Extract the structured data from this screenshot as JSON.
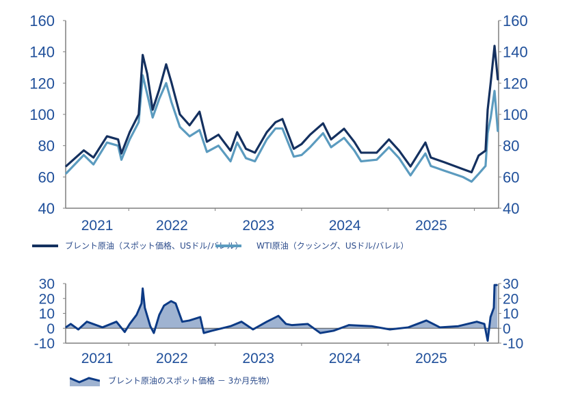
{
  "colors": {
    "brent": "#14305f",
    "wti": "#5b9bbf",
    "spread_line": "#0c3a85",
    "spread_fill": "#9fb3d1",
    "axis": "#7f7f7f",
    "tick_text": "#1f4f9a"
  },
  "chart_data": [
    {
      "type": "line",
      "y_ticks": [
        "160",
        "140",
        "120",
        "100",
        "80",
        "60",
        "40"
      ],
      "ylim": [
        40,
        160
      ],
      "x_ticks": [
        "2021",
        "2022",
        "2023",
        "2024",
        "2025"
      ],
      "grid": false,
      "legend_position": "bottom",
      "series": [
        {
          "name": "ブレント原油（スポット価格、USドル/バレル）",
          "points": [
            [
              "2021-04-10",
              66.7
            ],
            [
              "2021-06-25",
              77
            ],
            [
              "2021-08-05",
              72.4
            ],
            [
              "2021-10-01",
              86
            ],
            [
              "2021-11-17",
              84
            ],
            [
              "2021-12-01",
              75
            ],
            [
              "2022-01-05",
              88.6
            ],
            [
              "2022-02-12",
              100
            ],
            [
              "2022-03-01",
              138
            ],
            [
              "2022-03-20",
              126
            ],
            [
              "2022-04-12",
              103
            ],
            [
              "2022-05-10",
              116
            ],
            [
              "2022-06-08",
              132
            ],
            [
              "2022-06-30",
              120.6
            ],
            [
              "2022-08-05",
              100
            ],
            [
              "2022-09-15",
              93
            ],
            [
              "2022-10-27",
              101.7
            ],
            [
              "2022-11-27",
              82.5
            ],
            [
              "2023-01-15",
              87
            ],
            [
              "2023-03-07",
              76.8
            ],
            [
              "2023-04-04",
              88.6
            ],
            [
              "2023-05-11",
              78
            ],
            [
              "2023-06-18",
              75.5
            ],
            [
              "2023-08-07",
              88.6
            ],
            [
              "2023-09-13",
              95
            ],
            [
              "2023-10-12",
              97
            ],
            [
              "2023-11-29",
              78
            ],
            [
              "2024-01-01",
              81
            ],
            [
              "2024-02-06",
              87
            ],
            [
              "2024-04-01",
              94.3
            ],
            [
              "2024-05-05",
              84
            ],
            [
              "2024-06-29",
              90.8
            ],
            [
              "2024-08-11",
              82.5
            ],
            [
              "2024-09-09",
              75.5
            ],
            [
              "2024-11-14",
              75.5
            ],
            [
              "2025-01-05",
              84
            ],
            [
              "2025-02-17",
              76.8
            ],
            [
              "2025-04-06",
              66.7
            ],
            [
              "2025-06-08",
              82
            ],
            [
              "2025-07-01",
              72.4
            ],
            [
              "2025-08-27",
              69.4
            ],
            [
              "2025-11-13",
              65
            ],
            [
              "2025-12-20",
              63
            ],
            [
              "2026-01-19",
              73.7
            ],
            [
              "2026-02-17",
              76.8
            ],
            [
              "2026-02-26",
              103
            ],
            [
              "2026-03-11",
              120.6
            ],
            [
              "2026-03-27",
              143.8
            ],
            [
              "2026-04-10",
              122
            ]
          ]
        },
        {
          "name": "WTI原油（クッシング、USドル/バレル）",
          "points": [
            [
              "2021-04-10",
              62
            ],
            [
              "2021-06-25",
              74
            ],
            [
              "2021-08-05",
              68
            ],
            [
              "2021-10-01",
              82
            ],
            [
              "2021-11-17",
              80
            ],
            [
              "2021-12-01",
              71
            ],
            [
              "2022-01-05",
              84
            ],
            [
              "2022-02-12",
              95
            ],
            [
              "2022-03-01",
              125
            ],
            [
              "2022-03-20",
              113
            ],
            [
              "2022-04-12",
              98
            ],
            [
              "2022-05-10",
              110
            ],
            [
              "2022-06-08",
              120
            ],
            [
              "2022-06-30",
              108
            ],
            [
              "2022-08-05",
              92
            ],
            [
              "2022-09-15",
              86
            ],
            [
              "2022-10-27",
              90
            ],
            [
              "2022-11-27",
              76
            ],
            [
              "2023-01-15",
              80
            ],
            [
              "2023-03-07",
              70
            ],
            [
              "2023-04-04",
              82
            ],
            [
              "2023-05-11",
              72
            ],
            [
              "2023-06-18",
              70
            ],
            [
              "2023-08-07",
              84
            ],
            [
              "2023-09-13",
              91
            ],
            [
              "2023-10-12",
              91
            ],
            [
              "2023-11-29",
              73
            ],
            [
              "2024-01-01",
              74
            ],
            [
              "2024-02-06",
              79
            ],
            [
              "2024-04-01",
              88
            ],
            [
              "2024-05-05",
              79
            ],
            [
              "2024-06-29",
              85
            ],
            [
              "2024-08-11",
              77
            ],
            [
              "2024-09-09",
              70
            ],
            [
              "2024-11-14",
              71
            ],
            [
              "2025-01-05",
              79
            ],
            [
              "2025-02-17",
              72
            ],
            [
              "2025-04-06",
              61
            ],
            [
              "2025-06-08",
              75
            ],
            [
              "2025-07-01",
              67
            ],
            [
              "2025-08-27",
              64
            ],
            [
              "2025-11-13",
              60
            ],
            [
              "2025-12-20",
              57
            ],
            [
              "2026-01-19",
              62
            ],
            [
              "2026-02-17",
              67
            ],
            [
              "2026-02-26",
              88
            ],
            [
              "2026-03-11",
              98
            ],
            [
              "2026-03-27",
              115
            ],
            [
              "2026-04-10",
              89
            ]
          ]
        }
      ]
    },
    {
      "type": "area",
      "y_ticks": [
        "30",
        "20",
        "10",
        "0",
        "-10"
      ],
      "ylim": [
        -10,
        30
      ],
      "x_ticks": [
        "2021",
        "2022",
        "2023",
        "2024",
        "2025"
      ],
      "grid": false,
      "legend_position": "bottom-left",
      "series": [
        {
          "name": "ブレント原油のスポット価格 － 3か月先物）",
          "points": [
            [
              "2021-04-10",
              0.6
            ],
            [
              "2021-05-01",
              2.9
            ],
            [
              "2021-06-02",
              -0.8
            ],
            [
              "2021-07-08",
              4.4
            ],
            [
              "2021-09-12",
              0.6
            ],
            [
              "2021-11-10",
              4.4
            ],
            [
              "2021-12-15",
              -2.5
            ],
            [
              "2022-01-05",
              2.9
            ],
            [
              "2022-02-03",
              9
            ],
            [
              "2022-02-24",
              16.7
            ],
            [
              "2022-03-01",
              26.7
            ],
            [
              "2022-03-10",
              13.7
            ],
            [
              "2022-04-02",
              1.4
            ],
            [
              "2022-04-17",
              -3.2
            ],
            [
              "2022-05-10",
              9
            ],
            [
              "2022-05-30",
              15.2
            ],
            [
              "2022-06-29",
              18.2
            ],
            [
              "2022-07-18",
              16.7
            ],
            [
              "2022-08-15",
              4.4
            ],
            [
              "2022-09-14",
              5.2
            ],
            [
              "2022-10-30",
              7.5
            ],
            [
              "2022-11-14",
              -3.2
            ],
            [
              "2022-12-18",
              -1.7
            ],
            [
              "2023-03-07",
              1.4
            ],
            [
              "2023-04-22",
              4.4
            ],
            [
              "2023-06-10",
              -0.8
            ],
            [
              "2023-08-07",
              4.4
            ],
            [
              "2023-09-25",
              8.3
            ],
            [
              "2023-10-27",
              2.9
            ],
            [
              "2023-11-22",
              2.1
            ],
            [
              "2024-01-27",
              2.9
            ],
            [
              "2024-03-20",
              -3.2
            ],
            [
              "2024-05-15",
              -1.7
            ],
            [
              "2024-07-19",
              2.1
            ],
            [
              "2024-10-23",
              1.4
            ],
            [
              "2025-01-09",
              -0.8
            ],
            [
              "2025-03-28",
              0.6
            ],
            [
              "2025-06-12",
              5.2
            ],
            [
              "2025-08-08",
              0.6
            ],
            [
              "2025-10-25",
              1.4
            ],
            [
              "2026-01-11",
              4.4
            ],
            [
              "2026-02-12",
              2.9
            ],
            [
              "2026-02-26",
              -8.4
            ],
            [
              "2026-03-10",
              7.5
            ],
            [
              "2026-03-24",
              13.7
            ],
            [
              "2026-03-27",
              29
            ],
            [
              "2026-04-08",
              29
            ]
          ]
        }
      ]
    }
  ]
}
